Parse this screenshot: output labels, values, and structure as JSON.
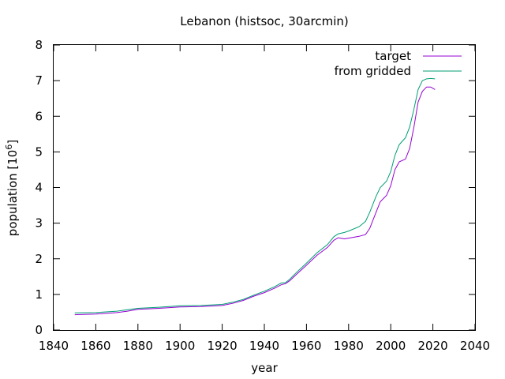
{
  "chart_data": {
    "type": "line",
    "title": "Lebanon (histsoc, 30arcmin)",
    "xlabel": "year",
    "ylabel_base": "population [10",
    "ylabel_exp": "6",
    "ylabel_close": "]",
    "xlim": [
      1840,
      2040
    ],
    "ylim": [
      0,
      8
    ],
    "x_ticks": [
      1840,
      1860,
      1880,
      1900,
      1920,
      1940,
      1960,
      1980,
      2000,
      2020,
      2040
    ],
    "y_ticks": [
      0,
      1,
      2,
      3,
      4,
      5,
      6,
      7,
      8
    ],
    "grid": false,
    "legend_position": "top-right",
    "series": [
      {
        "name": "target",
        "color": "#9400d3",
        "points": [
          [
            1850,
            0.43
          ],
          [
            1860,
            0.45
          ],
          [
            1870,
            0.49
          ],
          [
            1875,
            0.53
          ],
          [
            1880,
            0.58
          ],
          [
            1890,
            0.61
          ],
          [
            1900,
            0.65
          ],
          [
            1910,
            0.66
          ],
          [
            1920,
            0.69
          ],
          [
            1925,
            0.75
          ],
          [
            1930,
            0.83
          ],
          [
            1935,
            0.95
          ],
          [
            1940,
            1.05
          ],
          [
            1945,
            1.18
          ],
          [
            1948,
            1.27
          ],
          [
            1950,
            1.3
          ],
          [
            1952,
            1.38
          ],
          [
            1955,
            1.55
          ],
          [
            1960,
            1.82
          ],
          [
            1965,
            2.1
          ],
          [
            1970,
            2.32
          ],
          [
            1973,
            2.52
          ],
          [
            1975,
            2.59
          ],
          [
            1978,
            2.56
          ],
          [
            1980,
            2.58
          ],
          [
            1985,
            2.63
          ],
          [
            1988,
            2.68
          ],
          [
            1990,
            2.85
          ],
          [
            1993,
            3.3
          ],
          [
            1995,
            3.6
          ],
          [
            1998,
            3.78
          ],
          [
            2000,
            4.05
          ],
          [
            2002,
            4.5
          ],
          [
            2004,
            4.72
          ],
          [
            2007,
            4.8
          ],
          [
            2009,
            5.1
          ],
          [
            2011,
            5.7
          ],
          [
            2013,
            6.4
          ],
          [
            2015,
            6.7
          ],
          [
            2017,
            6.82
          ],
          [
            2019,
            6.82
          ],
          [
            2021,
            6.75
          ]
        ]
      },
      {
        "name": "from gridded",
        "color": "#009e73",
        "points": [
          [
            1850,
            0.48
          ],
          [
            1860,
            0.49
          ],
          [
            1870,
            0.53
          ],
          [
            1875,
            0.57
          ],
          [
            1880,
            0.61
          ],
          [
            1890,
            0.64
          ],
          [
            1900,
            0.68
          ],
          [
            1910,
            0.69
          ],
          [
            1920,
            0.72
          ],
          [
            1925,
            0.78
          ],
          [
            1930,
            0.86
          ],
          [
            1935,
            0.98
          ],
          [
            1940,
            1.09
          ],
          [
            1945,
            1.22
          ],
          [
            1948,
            1.32
          ],
          [
            1950,
            1.33
          ],
          [
            1952,
            1.42
          ],
          [
            1955,
            1.6
          ],
          [
            1960,
            1.88
          ],
          [
            1965,
            2.17
          ],
          [
            1970,
            2.4
          ],
          [
            1973,
            2.62
          ],
          [
            1975,
            2.7
          ],
          [
            1978,
            2.74
          ],
          [
            1980,
            2.78
          ],
          [
            1985,
            2.9
          ],
          [
            1988,
            3.05
          ],
          [
            1990,
            3.3
          ],
          [
            1993,
            3.75
          ],
          [
            1995,
            4.0
          ],
          [
            1998,
            4.18
          ],
          [
            2000,
            4.45
          ],
          [
            2002,
            4.9
          ],
          [
            2004,
            5.2
          ],
          [
            2007,
            5.4
          ],
          [
            2009,
            5.7
          ],
          [
            2011,
            6.2
          ],
          [
            2013,
            6.75
          ],
          [
            2015,
            7.0
          ],
          [
            2017,
            7.05
          ],
          [
            2019,
            7.06
          ],
          [
            2021,
            7.05
          ]
        ]
      }
    ]
  }
}
